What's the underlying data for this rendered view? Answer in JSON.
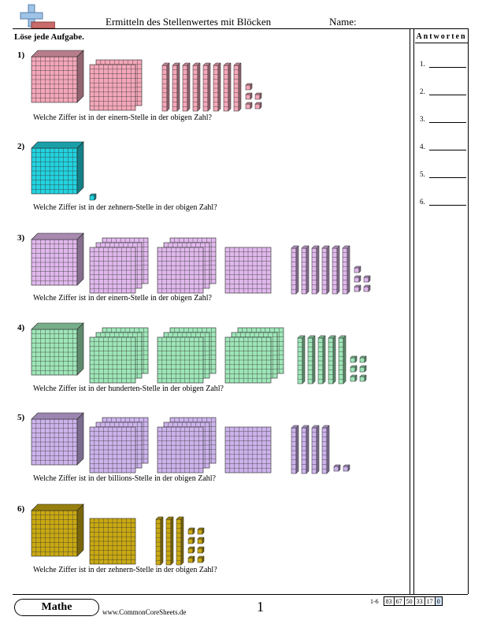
{
  "header": {
    "title": "Ermitteln des Stellenwertes mit Blöcken",
    "name_label": "Name:"
  },
  "instructions": "Löse jede Aufgabe.",
  "answers": {
    "heading": "Antworten",
    "numbers": [
      "1.",
      "2.",
      "3.",
      "4.",
      "5.",
      "6."
    ]
  },
  "problems": [
    {
      "number": "1)",
      "question": "Welche Ziffer ist in der einern-Stelle in der obigen Zahl?",
      "color": "#f4a7b9",
      "thousands": 1,
      "hundreds": 2,
      "tens": 8,
      "ones": 5
    },
    {
      "number": "2)",
      "question": "Welche Ziffer ist in der zehnern-Stelle in der obigen Zahl?",
      "color": "#22d3e0",
      "thousands": 1,
      "hundreds": 0,
      "tens": 0,
      "ones": 1
    },
    {
      "number": "3)",
      "question": "Welche Ziffer ist in der einern-Stelle in der obigen Zahl?",
      "color": "#e0b8ec",
      "thousands": 1,
      "hundreds": 7,
      "tens": 6,
      "ones": 5
    },
    {
      "number": "4)",
      "question": "Welche Ziffer ist in der hunderten-Stelle in der obigen Zahl?",
      "color": "#9ee6b8",
      "thousands": 1,
      "hundreds": 9,
      "tens": 5,
      "ones": 6
    },
    {
      "number": "5)",
      "question": "Welche Ziffer ist in der billions-Stelle in der obigen Zahl?",
      "color": "#cdb3ec",
      "thousands": 1,
      "hundreds": 7,
      "tens": 4,
      "ones": 2
    },
    {
      "number": "6)",
      "question": "Welche Ziffer ist in der zehnern-Stelle in der obigen Zahl?",
      "color": "#c9a912",
      "thousands": 1,
      "hundreds": 1,
      "tens": 3,
      "ones": 8
    }
  ],
  "footer": {
    "brand": "Mathe",
    "site": "www.CommonCoreSheets.de",
    "page": "1",
    "score_label": "1-6",
    "scores": [
      "83",
      "67",
      "50",
      "33",
      "17",
      "0"
    ]
  }
}
